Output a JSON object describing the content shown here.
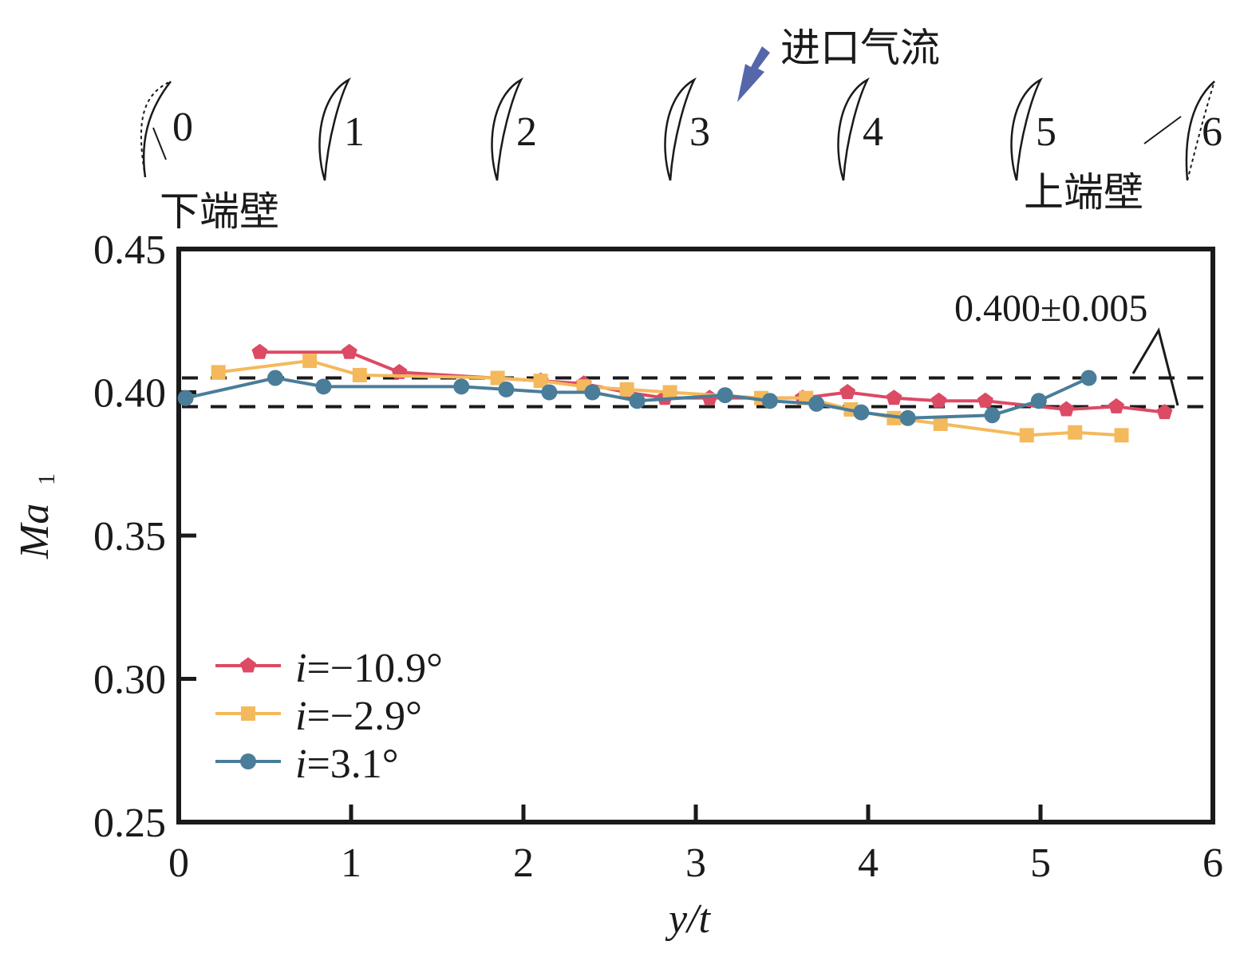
{
  "chart_data": {
    "type": "line",
    "title": "",
    "xlabel": "y/t",
    "ylabel": "Ma",
    "ylabel_sub": "1",
    "xlim": [
      0,
      6
    ],
    "ylim": [
      0.25,
      0.45
    ],
    "xticks": [
      "0",
      "1",
      "2",
      "3",
      "4",
      "5",
      "6"
    ],
    "yticks": [
      "0.25",
      "0.30",
      "0.35",
      "0.40",
      "0.45"
    ],
    "grid": false,
    "legend_position": "bottom-left",
    "reference_band": {
      "low": 0.395,
      "high": 0.405,
      "label": "0.400±0.005"
    },
    "series": [
      {
        "name": "i=−10.9°",
        "prefix": "i",
        "value": "=−10.9°",
        "marker": "pentagon",
        "color": "#dc4a64",
        "x": [
          0.47,
          0.99,
          1.28,
          2.1,
          2.35,
          2.6,
          2.82,
          3.08,
          3.62,
          3.88,
          4.15,
          4.41,
          4.68,
          5.15,
          5.44,
          5.72
        ],
        "y": [
          0.414,
          0.414,
          0.407,
          0.404,
          0.403,
          0.4,
          0.398,
          0.398,
          0.398,
          0.4,
          0.398,
          0.397,
          0.397,
          0.394,
          0.395,
          0.393
        ]
      },
      {
        "name": "i=−2.9°",
        "prefix": "i",
        "value": "=−2.9°",
        "marker": "square",
        "color": "#f4b95c",
        "x": [
          0.23,
          0.76,
          1.05,
          1.85,
          2.1,
          2.35,
          2.6,
          2.85,
          3.38,
          3.64,
          3.9,
          4.15,
          4.42,
          4.92,
          5.2,
          5.47
        ],
        "y": [
          0.407,
          0.411,
          0.406,
          0.405,
          0.404,
          0.402,
          0.401,
          0.4,
          0.398,
          0.398,
          0.394,
          0.391,
          0.389,
          0.385,
          0.386,
          0.385
        ]
      },
      {
        "name": "i=3.1°",
        "prefix": "i",
        "value": "=3.1°",
        "marker": "circle",
        "color": "#4a7d99",
        "x": [
          0.04,
          0.56,
          0.84,
          1.64,
          1.9,
          2.15,
          2.4,
          2.66,
          3.17,
          3.43,
          3.7,
          3.96,
          4.23,
          4.72,
          4.99,
          5.28
        ],
        "y": [
          0.398,
          0.405,
          0.402,
          0.402,
          0.401,
          0.4,
          0.4,
          0.397,
          0.399,
          0.397,
          0.396,
          0.393,
          0.391,
          0.392,
          0.397,
          0.405
        ]
      }
    ]
  },
  "schematic": {
    "blade_labels": [
      "0",
      "1",
      "2",
      "3",
      "4",
      "5",
      "6"
    ],
    "inlet_flow_label": "进口气流",
    "lower_endwall_label": "下端壁",
    "upper_endwall_label": "上端壁",
    "arrow_color": "#5566aa"
  }
}
